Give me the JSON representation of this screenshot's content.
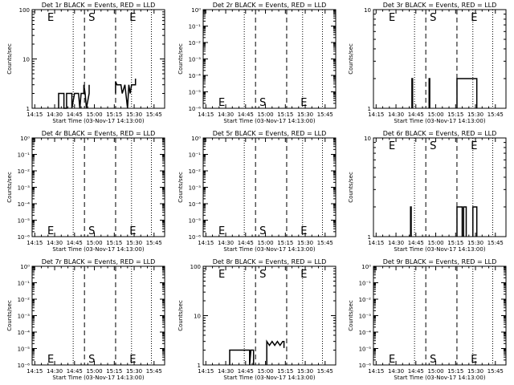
{
  "chart_data": [
    {
      "type": "line",
      "title": "Det 1r BLACK = Events, RED = LLD",
      "xlabel": "Start Time (03-Nov-17 14:13:00)",
      "ylabel": "Counts/sec",
      "x_ticks": [
        "14:15",
        "14:30",
        "14:45",
        "15:00",
        "15:15",
        "15:30",
        "15:45"
      ],
      "y_ticks": [
        "1",
        "10",
        "100"
      ],
      "y_scale": "log",
      "ylim": [
        1,
        100
      ],
      "markers": [
        {
          "label": "E",
          "minute": 14.0
        },
        {
          "label": "S",
          "minute": 45.0
        },
        {
          "label": "E",
          "minute": 76.0
        }
      ],
      "dashed_minutes": [
        39.5,
        63.0
      ],
      "dotted_minutes": [
        31.0,
        75.0,
        90.0
      ],
      "series": [
        {
          "values": [
            [
              20,
              1
            ],
            [
              20,
              2
            ],
            [
              24,
              2
            ],
            [
              24,
              1
            ],
            [
              26,
              1
            ],
            [
              26,
              2
            ],
            [
              30,
              2
            ],
            [
              30,
              1
            ],
            [
              32,
              2
            ],
            [
              35,
              2
            ],
            [
              36,
              1
            ],
            [
              37,
              2
            ],
            [
              39,
              2
            ],
            [
              39,
              3
            ],
            [
              40,
              2
            ],
            [
              41,
              1
            ],
            [
              43,
              2
            ],
            [
              43,
              3
            ]
          ]
        },
        {
          "values": [
            [
              63,
              2
            ],
            [
              63,
              3.5
            ],
            [
              64,
              3
            ],
            [
              67,
              3
            ],
            [
              68,
              2
            ],
            [
              70,
              3
            ],
            [
              72,
              1
            ],
            [
              73,
              3
            ],
            [
              74,
              2
            ],
            [
              75,
              3
            ],
            [
              78,
              3
            ],
            [
              78,
              4
            ]
          ]
        }
      ]
    },
    {
      "type": "line",
      "title": "Det 2r BLACK = Events, RED = LLD",
      "xlabel": "Start Time (03-Nov-17 14:13:00)",
      "ylabel": "Counts/sec",
      "x_ticks": [
        "14:15",
        "14:30",
        "14:45",
        "15:00",
        "15:15",
        "15:30",
        "15:45"
      ],
      "y_ticks": [
        "10⁰",
        "10⁻¹",
        "10⁻²",
        "10⁻³",
        "10⁻⁴",
        "10⁻⁵",
        "10⁻⁶"
      ],
      "y_scale": "log",
      "ylim": [
        1e-06,
        1
      ],
      "markers": [
        {
          "label": "E",
          "minute": 14.0
        },
        {
          "label": "S",
          "minute": 45.0
        },
        {
          "label": "E",
          "minute": 76.0
        }
      ],
      "dashed_minutes": [
        39.5,
        63.0
      ],
      "dotted_minutes": [
        31.0,
        75.0,
        90.0
      ],
      "series": []
    },
    {
      "type": "line",
      "title": "Det 3r BLACK = Events, RED = LLD",
      "xlabel": "Start Time (03-Nov-17 14:13:00)",
      "ylabel": "Counts/sec",
      "x_ticks": [
        "14:15",
        "14:30",
        "14:45",
        "15:00",
        "15:15",
        "15:30",
        "15:45"
      ],
      "y_ticks": [
        "1",
        "10"
      ],
      "y_scale": "log",
      "ylim": [
        1,
        10
      ],
      "markers": [
        {
          "label": "E",
          "minute": 14.0
        },
        {
          "label": "S",
          "minute": 45.0
        },
        {
          "label": "E",
          "minute": 76.0
        }
      ],
      "dashed_minutes": [
        39.5,
        63.0
      ],
      "dotted_minutes": [
        31.0,
        75.0,
        90.0
      ],
      "series": [
        {
          "values": [
            [
              29,
              1
            ],
            [
              29,
              2
            ],
            [
              29.5,
              2
            ],
            [
              29.5,
              1
            ]
          ]
        },
        {
          "values": [
            [
              42,
              1
            ],
            [
              42,
              2
            ],
            [
              42.5,
              2
            ],
            [
              42.5,
              1
            ]
          ]
        },
        {
          "values": [
            [
              63,
              1
            ],
            [
              63,
              2
            ],
            [
              78,
              2
            ],
            [
              78,
              1
            ]
          ]
        }
      ]
    },
    {
      "type": "line",
      "title": "Det 4r BLACK = Events, RED = LLD",
      "xlabel": "Start Time (03-Nov-17 14:13:00)",
      "ylabel": "Counts/sec",
      "x_ticks": [
        "14:15",
        "14:30",
        "14:45",
        "15:00",
        "15:15",
        "15:30",
        "15:45"
      ],
      "y_ticks": [
        "10⁰",
        "10⁻¹",
        "10⁻²",
        "10⁻³",
        "10⁻⁴",
        "10⁻⁵",
        "10⁻⁶"
      ],
      "y_scale": "log",
      "ylim": [
        1e-06,
        1
      ],
      "markers": [
        {
          "label": "E",
          "minute": 14.0
        },
        {
          "label": "S",
          "minute": 45.0
        },
        {
          "label": "E",
          "minute": 76.0
        }
      ],
      "dashed_minutes": [
        39.5,
        63.0
      ],
      "dotted_minutes": [
        31.0,
        75.0,
        90.0
      ],
      "series": []
    },
    {
      "type": "line",
      "title": "Det 5r BLACK = Events, RED = LLD",
      "xlabel": "Start Time (03-Nov-17 14:13:00)",
      "ylabel": "Counts/sec",
      "x_ticks": [
        "14:15",
        "14:30",
        "14:45",
        "15:00",
        "15:15",
        "15:30",
        "15:45"
      ],
      "y_ticks": [
        "10⁰",
        "10⁻¹",
        "10⁻²",
        "10⁻³",
        "10⁻⁴",
        "10⁻⁵",
        "10⁻⁶"
      ],
      "y_scale": "log",
      "ylim": [
        1e-06,
        1
      ],
      "markers": [
        {
          "label": "E",
          "minute": 14.0
        },
        {
          "label": "S",
          "minute": 45.0
        },
        {
          "label": "E",
          "minute": 76.0
        }
      ],
      "dashed_minutes": [
        39.5,
        63.0
      ],
      "dotted_minutes": [
        31.0,
        75.0,
        90.0
      ],
      "series": []
    },
    {
      "type": "line",
      "title": "Det 6r BLACK = Events, RED = LLD",
      "xlabel": "Start Time (03-Nov-17 14:13:00)",
      "ylabel": "Counts/sec",
      "x_ticks": [
        "14:15",
        "14:30",
        "14:45",
        "15:00",
        "15:15",
        "15:30",
        "15:45"
      ],
      "y_ticks": [
        "1",
        "10"
      ],
      "y_scale": "log",
      "ylim": [
        1,
        10
      ],
      "markers": [
        {
          "label": "E",
          "minute": 14.0
        },
        {
          "label": "S",
          "minute": 45.0
        },
        {
          "label": "E",
          "minute": 76.0
        }
      ],
      "dashed_minutes": [
        39.5,
        63.0
      ],
      "dotted_minutes": [
        31.0,
        75.0,
        90.0
      ],
      "series": [
        {
          "values": [
            [
              28,
              1
            ],
            [
              28,
              2
            ],
            [
              28.5,
              2
            ],
            [
              28.5,
              1
            ]
          ]
        },
        {
          "values": [
            [
              63,
              1
            ],
            [
              63,
              2
            ],
            [
              67,
              2
            ],
            [
              67,
              1
            ]
          ]
        },
        {
          "values": [
            [
              68,
              1
            ],
            [
              68,
              2
            ],
            [
              70,
              2
            ],
            [
              70,
              1
            ]
          ]
        },
        {
          "values": [
            [
              75,
              1
            ],
            [
              75,
              2
            ],
            [
              78,
              2
            ],
            [
              78,
              1
            ]
          ]
        }
      ]
    },
    {
      "type": "line",
      "title": "Det 7r BLACK = Events, RED = LLD",
      "xlabel": "Start Time (03-Nov-17 14:13:00)",
      "ylabel": "Counts/sec",
      "x_ticks": [
        "14:15",
        "14:30",
        "14:45",
        "15:00",
        "15:15",
        "15:30",
        "15:45"
      ],
      "y_ticks": [
        "10⁰",
        "10⁻¹",
        "10⁻²",
        "10⁻³",
        "10⁻⁴",
        "10⁻⁵",
        "10⁻⁶"
      ],
      "y_scale": "log",
      "ylim": [
        1e-06,
        1
      ],
      "markers": [
        {
          "label": "E",
          "minute": 14.0
        },
        {
          "label": "S",
          "minute": 45.0
        },
        {
          "label": "E",
          "minute": 76.0
        }
      ],
      "dashed_minutes": [
        39.5,
        63.0
      ],
      "dotted_minutes": [
        31.0,
        75.0,
        90.0
      ],
      "series": []
    },
    {
      "type": "line",
      "title": "Det 8r BLACK = Events, RED = LLD",
      "xlabel": "Start Time (03-Nov-17 14:13:00)",
      "ylabel": "Counts/sec",
      "x_ticks": [
        "14:15",
        "14:30",
        "14:45",
        "15:00",
        "15:15",
        "15:30",
        "15:45"
      ],
      "y_ticks": [
        "1",
        "10",
        "100"
      ],
      "y_scale": "log",
      "ylim": [
        1,
        100
      ],
      "markers": [
        {
          "label": "E",
          "minute": 14.0
        },
        {
          "label": "S",
          "minute": 45.0
        },
        {
          "label": "E",
          "minute": 76.0
        }
      ],
      "dashed_minutes": [
        39.5,
        63.0
      ],
      "dotted_minutes": [
        31.0,
        75.0,
        90.0
      ],
      "series": [
        {
          "values": [
            [
              20,
              1
            ],
            [
              20,
              2
            ],
            [
              35,
              2
            ],
            [
              35,
              1
            ],
            [
              36,
              2
            ],
            [
              38,
              2
            ],
            [
              38,
              1
            ]
          ]
        },
        {
          "values": [
            [
              48,
              1
            ],
            [
              48,
              3
            ],
            [
              50,
              2.5
            ],
            [
              52,
              3
            ],
            [
              54,
              2.5
            ],
            [
              56,
              3
            ],
            [
              58,
              2.5
            ],
            [
              60,
              3
            ],
            [
              61,
              3
            ],
            [
              61,
              2.2
            ]
          ]
        }
      ]
    },
    {
      "type": "line",
      "title": "Det 9r BLACK = Events, RED = LLD",
      "xlabel": "Start Time (03-Nov-17 14:13:00)",
      "ylabel": "Counts/sec",
      "x_ticks": [
        "14:15",
        "14:30",
        "14:45",
        "15:00",
        "15:15",
        "15:30",
        "15:45"
      ],
      "y_ticks": [
        "10⁰",
        "10⁻¹",
        "10⁻²",
        "10⁻³",
        "10⁻⁴",
        "10⁻⁵",
        "10⁻⁶"
      ],
      "y_scale": "log",
      "ylim": [
        1e-06,
        1
      ],
      "markers": [
        {
          "label": "E",
          "minute": 14.0
        },
        {
          "label": "S",
          "minute": 45.0
        },
        {
          "label": "E",
          "minute": 76.0
        }
      ],
      "dashed_minutes": [
        39.5,
        63.0
      ],
      "dotted_minutes": [
        31.0,
        75.0,
        90.0
      ],
      "series": []
    }
  ]
}
